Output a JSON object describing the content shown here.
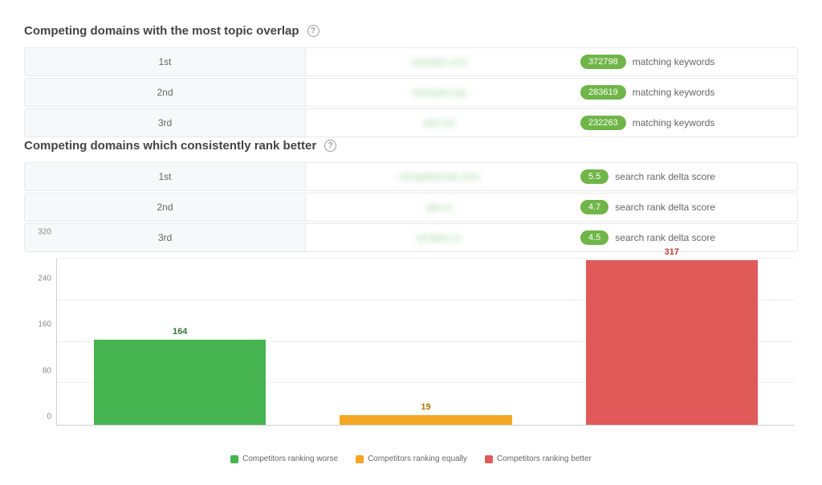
{
  "section1": {
    "title": "Competing domains with the most topic overlap",
    "metric_label": "matching keywords",
    "rows": [
      {
        "pos": "1st",
        "domain": "example.com",
        "value": "372798"
      },
      {
        "pos": "2nd",
        "domain": "example.org",
        "value": "283619"
      },
      {
        "pos": "3rd",
        "domain": "site.net",
        "value": "232263"
      }
    ]
  },
  "section2": {
    "title": "Competing domains which consistently rank better",
    "metric_label": "search rank delta score",
    "rows": [
      {
        "pos": "1st",
        "domain": "competitorsite.com",
        "value": "5.5"
      },
      {
        "pos": "2nd",
        "domain": "abc.io",
        "value": "4.7"
      },
      {
        "pos": "3rd",
        "domain": "another.co",
        "value": "4.5"
      }
    ]
  },
  "chart": {
    "type": "bar",
    "ylim": [
      0,
      320
    ],
    "ytick_step": 80,
    "yticks": [
      "0",
      "80",
      "160",
      "240",
      "320"
    ],
    "bar_width_pct": 70,
    "grid_color": "#eeeeee",
    "axis_color": "#d0d0d0",
    "label_fontsize": 10,
    "value_fontsize": 11,
    "bars": [
      {
        "label": "Competitors ranking worse",
        "value": 164,
        "color": "#46b450",
        "label_color": "#2e7d32"
      },
      {
        "label": "Competitors ranking equally",
        "value": 19,
        "color": "#f5a623",
        "label_color": "#b57400"
      },
      {
        "label": "Competitors ranking better",
        "value": 317,
        "color": "#e05a5a",
        "label_color": "#c0392b"
      }
    ]
  },
  "colors": {
    "badge_bg": "#6fb548",
    "text": "#555555"
  }
}
